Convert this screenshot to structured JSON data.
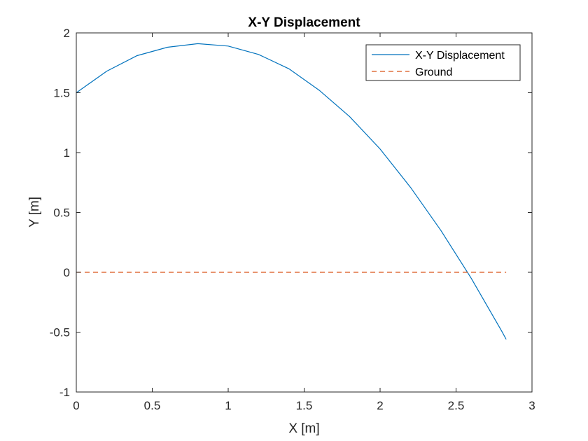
{
  "chart_data": {
    "type": "line",
    "title": "X-Y Displacement",
    "xlabel": "X [m]",
    "ylabel": "Y [m]",
    "xlim": [
      0,
      3
    ],
    "ylim": [
      -1,
      2
    ],
    "xticks": [
      0,
      0.5,
      1,
      1.5,
      2,
      2.5,
      3
    ],
    "xtick_labels": [
      "0",
      "0.5",
      "1",
      "1.5",
      "2",
      "2.5",
      "3"
    ],
    "yticks": [
      -1,
      -0.5,
      0,
      0.5,
      1,
      1.5,
      2
    ],
    "ytick_labels": [
      "-1",
      "-0.5",
      "0",
      "0.5",
      "1",
      "1.5",
      "2"
    ],
    "grid": false,
    "legend_position": "top-right",
    "series": [
      {
        "name": "X-Y Displacement",
        "color": "#0072BD",
        "style": "solid",
        "x": [
          0,
          0.2,
          0.4,
          0.6,
          0.8,
          1.0,
          1.2,
          1.4,
          1.6,
          1.8,
          2.0,
          2.2,
          2.4,
          2.6,
          2.8,
          2.83
        ],
        "y": [
          1.5,
          1.68,
          1.81,
          1.88,
          1.91,
          1.89,
          1.82,
          1.7,
          1.52,
          1.3,
          1.03,
          0.71,
          0.35,
          -0.05,
          -0.49,
          -0.56
        ]
      },
      {
        "name": "Ground",
        "color": "#D95319",
        "style": "dashed",
        "x": [
          0,
          2.83
        ],
        "y": [
          0,
          0
        ]
      }
    ]
  }
}
